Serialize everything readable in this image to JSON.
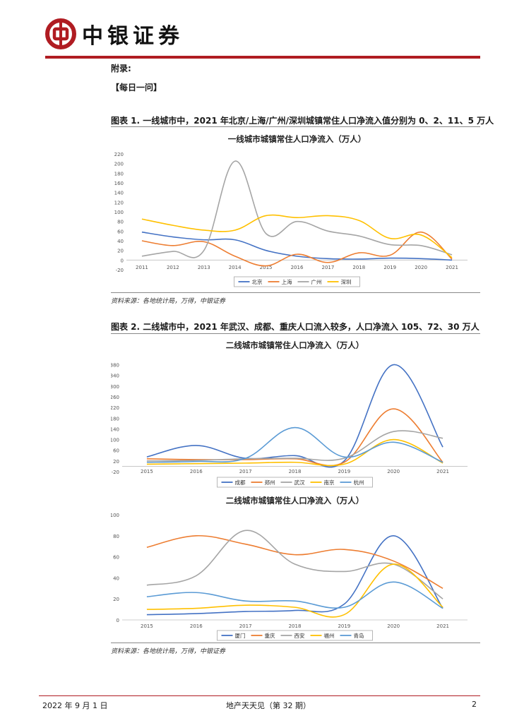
{
  "brand": {
    "name": "中银证券"
  },
  "appendix_label": "附录:",
  "section_label": "【每日一问】",
  "figures": [
    {
      "title": "图表 1. 一线城市中，2021 年北京/上海/广州/深圳城镇常住人口净流入值分别为 0、2、11、5 万人"
    },
    {
      "title": "图表 2. 二线城市中，2021 年武汉、成都、重庆人口流入较多，人口净流入 105、72、30 万人"
    }
  ],
  "source_1": "资料来源：各地统计局，万得，中银证券",
  "source_2": "资料来源：各地统计局，万得，中银证券",
  "footer": {
    "date": "2022 年 9 月 1 日",
    "title": "地产天天见（第 32 期）",
    "page": "2"
  },
  "chart_data": [
    {
      "type": "line",
      "title": "一线城市城镇常住人口净流入（万人）",
      "x": [
        "2011",
        "2012",
        "2013",
        "2014",
        "2015",
        "2016",
        "2017",
        "2018",
        "2019",
        "2020",
        "2021"
      ],
      "yticks": [
        -20,
        0,
        20,
        40,
        60,
        80,
        100,
        120,
        140,
        160,
        180,
        200,
        220
      ],
      "ylim": [
        -20,
        220
      ],
      "grid": false,
      "legend_position": "bottom",
      "series": [
        {
          "name": "北京",
          "color": "#4472c4",
          "values": [
            58,
            48,
            42,
            42,
            20,
            8,
            3,
            2,
            4,
            3,
            0
          ]
        },
        {
          "name": "上海",
          "color": "#ed7d31",
          "values": [
            40,
            30,
            38,
            8,
            -12,
            12,
            -5,
            15,
            10,
            58,
            2
          ]
        },
        {
          "name": "广州",
          "color": "#a5a5a5",
          "values": [
            8,
            18,
            20,
            205,
            55,
            80,
            60,
            50,
            32,
            30,
            11
          ]
        },
        {
          "name": "深圳",
          "color": "#ffc000",
          "values": [
            85,
            72,
            62,
            62,
            92,
            88,
            92,
            82,
            45,
            52,
            5
          ]
        }
      ]
    },
    {
      "type": "line",
      "title": "二线城市城镇常住人口净流入（万人）",
      "x": [
        "2015",
        "2016",
        "2017",
        "2018",
        "2019",
        "2020",
        "2021"
      ],
      "yticks": [
        -20,
        20,
        60,
        100,
        140,
        180,
        220,
        260,
        300,
        340,
        380
      ],
      "ylim": [
        -20,
        400
      ],
      "grid": false,
      "legend_position": "bottom",
      "series": [
        {
          "name": "成都",
          "color": "#4472c4",
          "values": [
            35,
            78,
            30,
            40,
            20,
            380,
            72
          ]
        },
        {
          "name": "郑州",
          "color": "#ed7d31",
          "values": [
            28,
            25,
            25,
            28,
            15,
            215,
            15
          ]
        },
        {
          "name": "武汉",
          "color": "#a5a5a5",
          "values": [
            20,
            22,
            28,
            30,
            30,
            130,
            105
          ]
        },
        {
          "name": "南京",
          "color": "#ffc000",
          "values": [
            8,
            10,
            12,
            15,
            8,
            100,
            12
          ]
        },
        {
          "name": "杭州",
          "color": "#5b9bd5",
          "values": [
            15,
            18,
            30,
            145,
            35,
            90,
            15
          ]
        }
      ]
    },
    {
      "type": "line",
      "title": "二线城市城镇常住人口净流入（万人）",
      "x": [
        "2015",
        "2016",
        "2017",
        "2018",
        "2019",
        "2020",
        "2021"
      ],
      "yticks": [
        0,
        20,
        40,
        60,
        80,
        100
      ],
      "ylim": [
        0,
        100
      ],
      "grid": false,
      "legend_position": "bottom",
      "series": [
        {
          "name": "厦门",
          "color": "#4472c4",
          "values": [
            5,
            6,
            8,
            9,
            15,
            80,
            11
          ]
        },
        {
          "name": "重庆",
          "color": "#ed7d31",
          "values": [
            69,
            80,
            72,
            62,
            67,
            56,
            30
          ]
        },
        {
          "name": "西安",
          "color": "#a5a5a5",
          "values": [
            33,
            42,
            85,
            53,
            46,
            53,
            20
          ]
        },
        {
          "name": "福州",
          "color": "#ffc000",
          "values": [
            10,
            11,
            14,
            12,
            5,
            53,
            12
          ]
        },
        {
          "name": "青岛",
          "color": "#5b9bd5",
          "values": [
            22,
            26,
            18,
            18,
            12,
            36,
            11
          ]
        }
      ]
    }
  ]
}
